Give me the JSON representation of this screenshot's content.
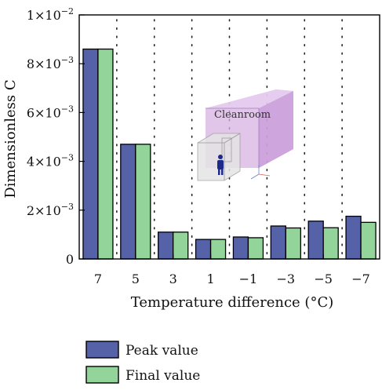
{
  "chart_data": {
    "type": "bar",
    "categories": [
      "7",
      "5",
      "3",
      "1",
      "−1",
      "−3",
      "−5",
      "−7"
    ],
    "series": [
      {
        "name": "Peak value",
        "values": [
          0.0086,
          0.0047,
          0.0011,
          0.0008,
          0.0009,
          0.00135,
          0.00155,
          0.00175
        ],
        "color": "#5562a8"
      },
      {
        "name": "Final value",
        "values": [
          0.0086,
          0.0047,
          0.0011,
          0.0008,
          0.00087,
          0.00127,
          0.00128,
          0.0015
        ],
        "color": "#92d49a"
      }
    ],
    "xlabel": "Temperature difference (°C)",
    "ylabel": "Dimensionless C",
    "ylim": [
      0,
      0.01
    ],
    "yticks": [
      {
        "value": 0,
        "mantissa": "0",
        "exp": ""
      },
      {
        "value": 0.002,
        "mantissa": "2×10",
        "exp": "−3"
      },
      {
        "value": 0.004,
        "mantissa": "4×10",
        "exp": "−3"
      },
      {
        "value": 0.006,
        "mantissa": "6×10",
        "exp": "−3"
      },
      {
        "value": 0.008,
        "mantissa": "8×10",
        "exp": "−3"
      },
      {
        "value": 0.01,
        "mantissa": "1×10",
        "exp": "−2"
      }
    ],
    "grid": "vertical-dotted",
    "legend_position": "bottom-left",
    "inset_label": "Cleanroom"
  }
}
